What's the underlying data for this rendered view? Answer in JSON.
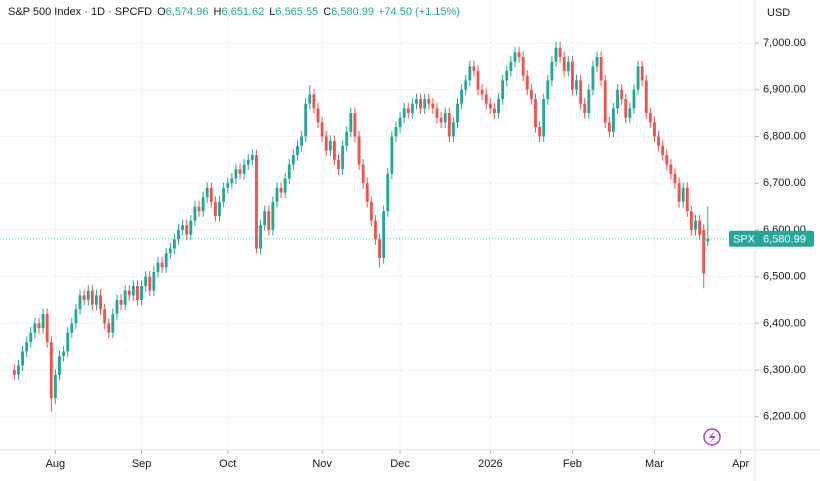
{
  "chart_data": {
    "type": "candlestick",
    "header": {
      "symbol": "S&P 500 Index · 1D · SPCFD",
      "o_key": "O",
      "o": "6,574.96",
      "h_key": "H",
      "h": "6,651.62",
      "l_key": "L",
      "l": "6,565.55",
      "c_key": "C",
      "c": "6,580.99",
      "change": "+74.50 (+1.15%)"
    },
    "currency": "USD",
    "last_price": {
      "name": "SPX",
      "label": "6,580.99",
      "value": 6580.99
    },
    "up_color": "#26a69a",
    "down_color": "#ef5350",
    "xlim": [
      -3.5,
      180.5
    ],
    "xticks": [
      {
        "value": 10,
        "label": "Aug"
      },
      {
        "value": 31,
        "label": "Sep"
      },
      {
        "value": 52,
        "label": "Oct"
      },
      {
        "value": 75,
        "label": "Nov"
      },
      {
        "value": 94,
        "label": "Dec"
      },
      {
        "value": 116,
        "label": "2026"
      },
      {
        "value": 136,
        "label": "Feb"
      },
      {
        "value": 156,
        "label": "Mar"
      },
      {
        "value": 177,
        "label": "Apr"
      }
    ],
    "ylim": [
      6129,
      7092
    ],
    "yticks": [
      {
        "value": 6200,
        "label": "6,200.00"
      },
      {
        "value": 6300,
        "label": "6,300.00"
      },
      {
        "value": 6400,
        "label": "6,400.00"
      },
      {
        "value": 6500,
        "label": "6,500.00"
      },
      {
        "value": 6600,
        "label": "6,600.00"
      },
      {
        "value": 6700,
        "label": "6,700.00"
      },
      {
        "value": 6800,
        "label": "6,800.00"
      },
      {
        "value": 6900,
        "label": "6,900.00"
      },
      {
        "value": 7000,
        "label": "7,000.00"
      }
    ],
    "open": [
      6300,
      6290,
      6310,
      6340,
      6360,
      6380,
      6400,
      6390,
      6420,
      6360,
      6240,
      6290,
      6330,
      6340,
      6380,
      6400,
      6430,
      6460,
      6450,
      6470,
      6440,
      6460,
      6430,
      6400,
      6380,
      6420,
      6450,
      6440,
      6470,
      6460,
      6480,
      6450,
      6480,
      6500,
      6470,
      6510,
      6530,
      6520,
      6550,
      6560,
      6580,
      6600,
      6610,
      6590,
      6620,
      6650,
      6640,
      6670,
      6690,
      6660,
      6630,
      6660,
      6690,
      6700,
      6710,
      6730,
      6720,
      6740,
      6750,
      6760,
      6560,
      6610,
      6640,
      6600,
      6660,
      6690,
      6680,
      6710,
      6740,
      6760,
      6780,
      6800,
      6870,
      6890,
      6860,
      6830,
      6800,
      6770,
      6790,
      6750,
      6730,
      6780,
      6810,
      6850,
      6800,
      6740,
      6700,
      6660,
      6620,
      6580,
      6540,
      6640,
      6720,
      6800,
      6820,
      6840,
      6860,
      6850,
      6870,
      6880,
      6860,
      6880,
      6870,
      6860,
      6840,
      6830,
      6850,
      6800,
      6830,
      6870,
      6900,
      6920,
      6950,
      6940,
      6900,
      6890,
      6870,
      6860,
      6850,
      6880,
      6920,
      6940,
      6960,
      6980,
      6970,
      6930,
      6900,
      6880,
      6820,
      6800,
      6880,
      6920,
      6960,
      6990,
      6970,
      6940,
      6960,
      6900,
      6920,
      6870,
      6850,
      6900,
      6950,
      6970,
      6920,
      6830,
      6810,
      6860,
      6900,
      6880,
      6840,
      6860,
      6900,
      6950,
      6920,
      6850,
      6830,
      6800,
      6780,
      6760,
      6740,
      6720,
      6700,
      6660,
      6690,
      6640,
      6600,
      6620,
      6600,
      6574.96
    ],
    "high": [
      6312,
      6322,
      6352,
      6372,
      6392,
      6412,
      6412,
      6432,
      6432,
      6372,
      6302,
      6342,
      6352,
      6392,
      6412,
      6442,
      6472,
      6472,
      6482,
      6482,
      6472,
      6472,
      6442,
      6412,
      6432,
      6462,
      6462,
      6482,
      6482,
      6492,
      6492,
      6492,
      6512,
      6512,
      6522,
      6542,
      6542,
      6562,
      6572,
      6592,
      6612,
      6622,
      6622,
      6632,
      6662,
      6662,
      6682,
      6702,
      6702,
      6672,
      6672,
      6702,
      6712,
      6722,
      6742,
      6742,
      6752,
      6762,
      6772,
      6772,
      6622,
      6652,
      6652,
      6672,
      6702,
      6702,
      6722,
      6752,
      6772,
      6792,
      6812,
      6882,
      6910,
      6902,
      6872,
      6842,
      6812,
      6802,
      6802,
      6762,
      6792,
      6822,
      6862,
      6862,
      6812,
      6752,
      6712,
      6672,
      6632,
      6592,
      6652,
      6732,
      6812,
      6832,
      6852,
      6872,
      6872,
      6882,
      6892,
      6892,
      6892,
      6892,
      6882,
      6872,
      6852,
      6862,
      6862,
      6842,
      6882,
      6912,
      6932,
      6962,
      6962,
      6952,
      6912,
      6902,
      6882,
      6872,
      6892,
      6932,
      6952,
      6972,
      6992,
      6992,
      6982,
      6942,
      6912,
      6892,
      6832,
      6892,
      6932,
      6972,
      7002,
      7002,
      6982,
      6972,
      6972,
      6932,
      6932,
      6882,
      6912,
      6962,
      6982,
      6982,
      6932,
      6842,
      6872,
      6912,
      6912,
      6892,
      6872,
      6912,
      6962,
      6962,
      6932,
      6862,
      6842,
      6812,
      6792,
      6772,
      6752,
      6732,
      6712,
      6702,
      6702,
      6652,
      6632,
      6632,
      6612,
      6651.62
    ],
    "low": [
      6278,
      6278,
      6298,
      6328,
      6348,
      6368,
      6378,
      6378,
      6348,
      6210,
      6228,
      6278,
      6318,
      6328,
      6368,
      6388,
      6418,
      6438,
      6438,
      6428,
      6428,
      6418,
      6388,
      6368,
      6368,
      6408,
      6428,
      6428,
      6448,
      6448,
      6438,
      6438,
      6468,
      6458,
      6458,
      6498,
      6508,
      6508,
      6538,
      6548,
      6568,
      6588,
      6578,
      6578,
      6608,
      6628,
      6628,
      6658,
      6648,
      6618,
      6618,
      6648,
      6678,
      6688,
      6698,
      6708,
      6708,
      6728,
      6738,
      6550,
      6548,
      6598,
      6588,
      6588,
      6648,
      6668,
      6668,
      6698,
      6728,
      6748,
      6768,
      6788,
      6858,
      6848,
      6818,
      6788,
      6758,
      6758,
      6738,
      6718,
      6718,
      6768,
      6798,
      6788,
      6728,
      6688,
      6648,
      6608,
      6568,
      6520,
      6528,
      6628,
      6708,
      6788,
      6808,
      6828,
      6838,
      6838,
      6858,
      6848,
      6848,
      6858,
      6848,
      6828,
      6818,
      6818,
      6788,
      6788,
      6818,
      6858,
      6888,
      6908,
      6928,
      6888,
      6878,
      6858,
      6848,
      6838,
      6838,
      6868,
      6908,
      6928,
      6948,
      6958,
      6918,
      6888,
      6868,
      6808,
      6788,
      6788,
      6868,
      6908,
      6948,
      6958,
      6928,
      6928,
      6888,
      6888,
      6858,
      6838,
      6838,
      6888,
      6938,
      6908,
      6818,
      6798,
      6798,
      6848,
      6868,
      6828,
      6828,
      6848,
      6888,
      6908,
      6838,
      6818,
      6788,
      6768,
      6748,
      6728,
      6708,
      6688,
      6648,
      6648,
      6628,
      6588,
      6588,
      6578,
      6475,
      6565.55
    ],
    "close": [
      6290,
      6310,
      6340,
      6360,
      6380,
      6400,
      6390,
      6420,
      6360,
      6240,
      6290,
      6330,
      6340,
      6380,
      6400,
      6430,
      6460,
      6450,
      6470,
      6440,
      6460,
      6430,
      6400,
      6380,
      6420,
      6450,
      6440,
      6470,
      6460,
      6480,
      6450,
      6480,
      6500,
      6470,
      6510,
      6530,
      6520,
      6550,
      6560,
      6580,
      6600,
      6610,
      6590,
      6620,
      6650,
      6640,
      6670,
      6690,
      6660,
      6630,
      6660,
      6690,
      6700,
      6710,
      6730,
      6720,
      6740,
      6750,
      6760,
      6560,
      6610,
      6640,
      6600,
      6660,
      6690,
      6680,
      6710,
      6740,
      6760,
      6780,
      6800,
      6870,
      6890,
      6860,
      6830,
      6800,
      6770,
      6790,
      6750,
      6730,
      6780,
      6810,
      6850,
      6800,
      6740,
      6700,
      6660,
      6620,
      6580,
      6540,
      6640,
      6720,
      6800,
      6820,
      6840,
      6860,
      6850,
      6870,
      6880,
      6860,
      6880,
      6870,
      6860,
      6840,
      6830,
      6850,
      6800,
      6830,
      6870,
      6900,
      6920,
      6950,
      6940,
      6900,
      6890,
      6870,
      6860,
      6850,
      6880,
      6920,
      6940,
      6960,
      6980,
      6970,
      6930,
      6900,
      6880,
      6820,
      6800,
      6880,
      6920,
      6960,
      6990,
      6970,
      6940,
      6960,
      6900,
      6920,
      6870,
      6850,
      6900,
      6950,
      6970,
      6920,
      6830,
      6810,
      6860,
      6900,
      6880,
      6840,
      6860,
      6900,
      6950,
      6920,
      6850,
      6830,
      6800,
      6780,
      6760,
      6740,
      6720,
      6700,
      6660,
      6690,
      6640,
      6600,
      6620,
      6590,
      6506.49,
      6580.99
    ]
  }
}
